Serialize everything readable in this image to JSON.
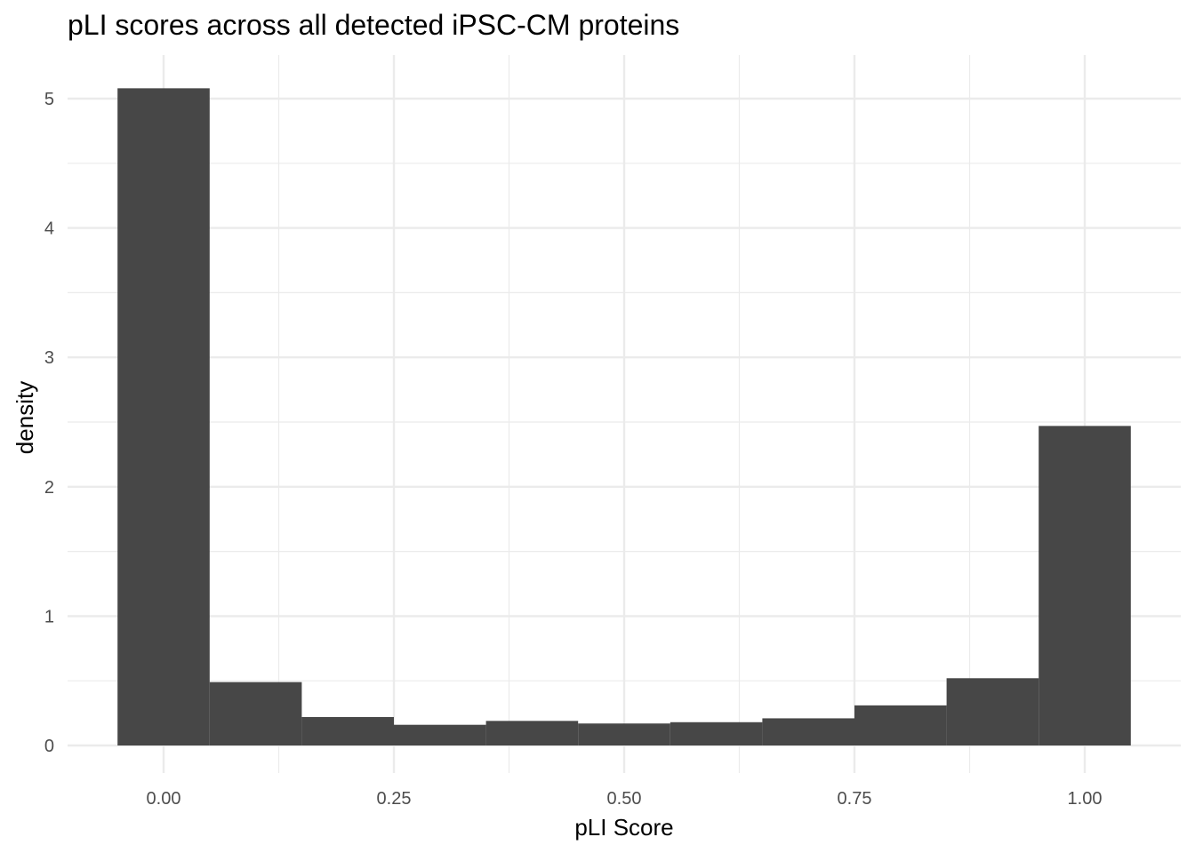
{
  "chart_data": {
    "type": "bar",
    "title": "pLI scores across all detected iPSC-CM proteins",
    "xlabel": "pLI Score",
    "ylabel": "density",
    "xlim": [
      -0.05,
      1.05
    ],
    "ylim": [
      0,
      5.08
    ],
    "x_ticks": [
      "0.00",
      "0.25",
      "0.50",
      "0.75",
      "1.00"
    ],
    "y_ticks": [
      "0",
      "1",
      "2",
      "3",
      "4",
      "5"
    ],
    "bins": [
      {
        "x0": -0.05,
        "x1": 0.05,
        "value": 5.08
      },
      {
        "x0": 0.05,
        "x1": 0.15,
        "value": 0.49
      },
      {
        "x0": 0.15,
        "x1": 0.25,
        "value": 0.22
      },
      {
        "x0": 0.25,
        "x1": 0.35,
        "value": 0.16
      },
      {
        "x0": 0.35,
        "x1": 0.45,
        "value": 0.19
      },
      {
        "x0": 0.45,
        "x1": 0.55,
        "value": 0.17
      },
      {
        "x0": 0.55,
        "x1": 0.65,
        "value": 0.18
      },
      {
        "x0": 0.65,
        "x1": 0.75,
        "value": 0.21
      },
      {
        "x0": 0.75,
        "x1": 0.85,
        "value": 0.31
      },
      {
        "x0": 0.85,
        "x1": 0.95,
        "value": 0.52
      },
      {
        "x0": 0.95,
        "x1": 1.05,
        "value": 2.47
      }
    ],
    "bar_color": "#474747",
    "grid": true,
    "legend": "none"
  }
}
